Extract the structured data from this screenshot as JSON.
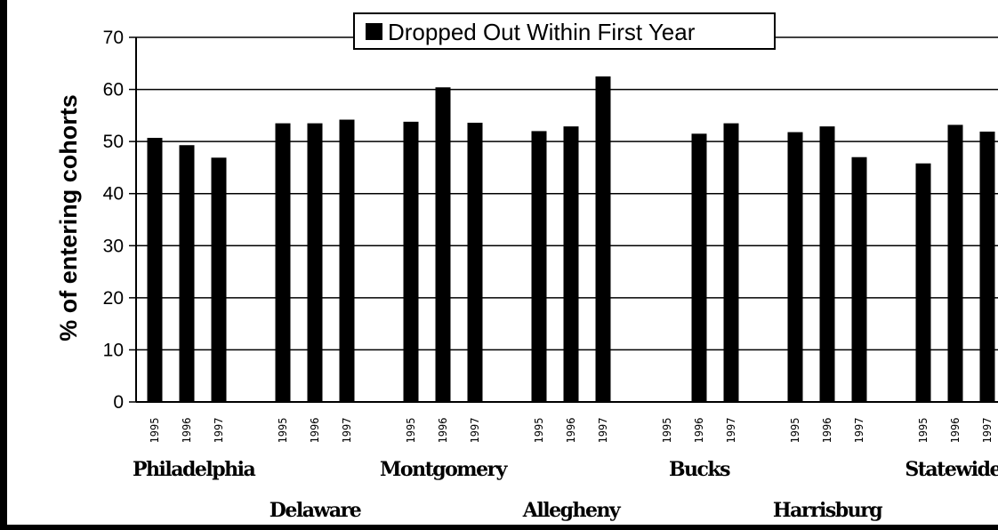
{
  "chart_data": {
    "type": "bar",
    "ylabel": "% of entering cohorts",
    "ylim": [
      0,
      70
    ],
    "yticks": [
      0,
      10,
      20,
      30,
      40,
      50,
      60,
      70
    ],
    "grid": true,
    "legend": {
      "label": "Dropped Out Within First Year",
      "placement": "top-center"
    },
    "series": [
      {
        "name": "Dropped Out Within First Year",
        "color": "#000000",
        "groups": [
          {
            "name": "Philadelphia",
            "years": [
              "1995",
              "1996",
              "1997"
            ],
            "values": [
              50.7,
              49.3,
              46.9
            ]
          },
          {
            "name": "Delaware",
            "years": [
              "1995",
              "1996",
              "1997"
            ],
            "values": [
              53.5,
              53.5,
              54.2
            ]
          },
          {
            "name": "Montgomery",
            "years": [
              "1995",
              "1996",
              "1997"
            ],
            "values": [
              53.8,
              60.4,
              53.6
            ]
          },
          {
            "name": "Allegheny",
            "years": [
              "1995",
              "1996",
              "1997"
            ],
            "values": [
              52.0,
              52.9,
              62.5
            ]
          },
          {
            "name": "Bucks",
            "years": [
              "1995",
              "1996",
              "1997"
            ],
            "values": [
              null,
              51.5,
              53.5
            ]
          },
          {
            "name": "Harrisburg",
            "years": [
              "1995",
              "1996",
              "1997"
            ],
            "values": [
              51.8,
              52.9,
              47.0
            ]
          },
          {
            "name": "Statewide",
            "years": [
              "1995",
              "1996",
              "1997"
            ],
            "values": [
              45.8,
              53.2,
              51.9
            ]
          }
        ]
      }
    ]
  }
}
